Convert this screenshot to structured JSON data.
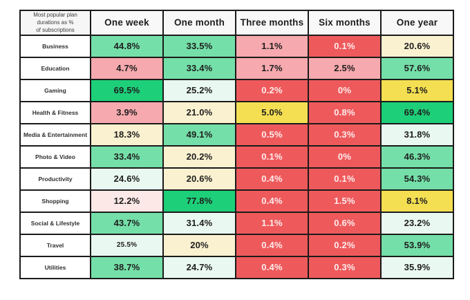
{
  "title": "Most popular plan durations as % of subscriptions",
  "palette": {
    "emerald": "#1ecf79",
    "green": "#74dfa8",
    "mint": "#e9f8f0",
    "cream": "#faf1d0",
    "yellow": "#f4df52",
    "pink": "#f6a9ae",
    "lightpink": "#fce8e6",
    "red": "#ee5a5c",
    "header_bg": "#f8f8f8",
    "border": "#1a1a1a",
    "text_dark": "#1d1d1d",
    "text_on_red": "#ffecec"
  },
  "table": {
    "corner_label": "Most popular plan\ndurations as %\nof subscriptions",
    "columns": [
      "One week",
      "One month",
      "Three months",
      "Six months",
      "One year"
    ],
    "rows": [
      {
        "label": "Business",
        "cells": [
          {
            "value": "44.8%",
            "color": "green"
          },
          {
            "value": "33.5%",
            "color": "green"
          },
          {
            "value": "1.1%",
            "color": "pink"
          },
          {
            "value": "0.1%",
            "color": "red"
          },
          {
            "value": "20.6%",
            "color": "cream"
          }
        ]
      },
      {
        "label": "Education",
        "cells": [
          {
            "value": "4.7%",
            "color": "pink"
          },
          {
            "value": "33.4%",
            "color": "green"
          },
          {
            "value": "1.7%",
            "color": "pink"
          },
          {
            "value": "2.5%",
            "color": "pink"
          },
          {
            "value": "57.6%",
            "color": "green"
          }
        ]
      },
      {
        "label": "Gaming",
        "cells": [
          {
            "value": "69.5%",
            "color": "emerald"
          },
          {
            "value": "25.2%",
            "color": "mint"
          },
          {
            "value": "0.2%",
            "color": "red"
          },
          {
            "value": "0%",
            "color": "red"
          },
          {
            "value": "5.1%",
            "color": "yellow"
          }
        ]
      },
      {
        "label": "Health & Fitness",
        "cells": [
          {
            "value": "3.9%",
            "color": "pink"
          },
          {
            "value": "21.0%",
            "color": "cream"
          },
          {
            "value": "5.0%",
            "color": "yellow"
          },
          {
            "value": "0.8%",
            "color": "red"
          },
          {
            "value": "69.4%",
            "color": "emerald"
          }
        ]
      },
      {
        "label": "Media & Entertainment",
        "cells": [
          {
            "value": "18.3%",
            "color": "cream"
          },
          {
            "value": "49.1%",
            "color": "green"
          },
          {
            "value": "0.5%",
            "color": "red"
          },
          {
            "value": "0.3%",
            "color": "red"
          },
          {
            "value": "31.8%",
            "color": "mint"
          }
        ]
      },
      {
        "label": "Photo & Video",
        "cells": [
          {
            "value": "33.4%",
            "color": "green"
          },
          {
            "value": "20.2%",
            "color": "cream"
          },
          {
            "value": "0.1%",
            "color": "red"
          },
          {
            "value": "0%",
            "color": "red"
          },
          {
            "value": "46.3%",
            "color": "green"
          }
        ]
      },
      {
        "label": "Productivity",
        "cells": [
          {
            "value": "24.6%",
            "color": "mint"
          },
          {
            "value": "20.6%",
            "color": "cream"
          },
          {
            "value": "0.4%",
            "color": "red"
          },
          {
            "value": "0.1%",
            "color": "red"
          },
          {
            "value": "54.3%",
            "color": "green"
          }
        ]
      },
      {
        "label": "Shopping",
        "cells": [
          {
            "value": "12.2%",
            "color": "lightpink"
          },
          {
            "value": "77.8%",
            "color": "emerald"
          },
          {
            "value": "0.4%",
            "color": "red"
          },
          {
            "value": "1.5%",
            "color": "red"
          },
          {
            "value": "8.1%",
            "color": "yellow"
          }
        ]
      },
      {
        "label": "Social & Lifestyle",
        "cells": [
          {
            "value": "43.7%",
            "color": "green"
          },
          {
            "value": "31.4%",
            "color": "mint"
          },
          {
            "value": "1.1%",
            "color": "red"
          },
          {
            "value": "0.6%",
            "color": "red"
          },
          {
            "value": "23.2%",
            "color": "mint"
          }
        ]
      },
      {
        "label": "Travel",
        "cells": [
          {
            "value": "25.5%",
            "color": "mint",
            "small": true
          },
          {
            "value": "20%",
            "color": "cream"
          },
          {
            "value": "0.4%",
            "color": "red"
          },
          {
            "value": "0.2%",
            "color": "red"
          },
          {
            "value": "53.9%",
            "color": "green"
          }
        ]
      },
      {
        "label": "Utilities",
        "cells": [
          {
            "value": "38.7%",
            "color": "green"
          },
          {
            "value": "24.7%",
            "color": "mint"
          },
          {
            "value": "0.4%",
            "color": "red"
          },
          {
            "value": "0.3%",
            "color": "red"
          },
          {
            "value": "35.9%",
            "color": "mint"
          }
        ]
      }
    ]
  },
  "chart_data": {
    "type": "heatmap",
    "title": "Most popular plan durations as % of subscriptions",
    "columns": [
      "One week",
      "One month",
      "Three months",
      "Six months",
      "One year"
    ],
    "rows": [
      "Business",
      "Education",
      "Gaming",
      "Health & Fitness",
      "Media & Entertainment",
      "Photo & Video",
      "Productivity",
      "Shopping",
      "Social & Lifestyle",
      "Travel",
      "Utilities"
    ],
    "values": [
      [
        44.8,
        33.5,
        1.1,
        0.1,
        20.6
      ],
      [
        4.7,
        33.4,
        1.7,
        2.5,
        57.6
      ],
      [
        69.5,
        25.2,
        0.2,
        0,
        5.1
      ],
      [
        3.9,
        21.0,
        5.0,
        0.8,
        69.4
      ],
      [
        18.3,
        49.1,
        0.5,
        0.3,
        31.8
      ],
      [
        33.4,
        20.2,
        0.1,
        0,
        46.3
      ],
      [
        24.6,
        20.6,
        0.4,
        0.1,
        54.3
      ],
      [
        12.2,
        77.8,
        0.4,
        1.5,
        8.1
      ],
      [
        43.7,
        31.4,
        1.1,
        0.6,
        23.2
      ],
      [
        25.5,
        20,
        0.4,
        0.2,
        53.9
      ],
      [
        38.7,
        24.7,
        0.4,
        0.3,
        35.9
      ]
    ],
    "legend": "cell color encodes magnitude: red (low) through pink/yellow/cream to green (high)"
  }
}
